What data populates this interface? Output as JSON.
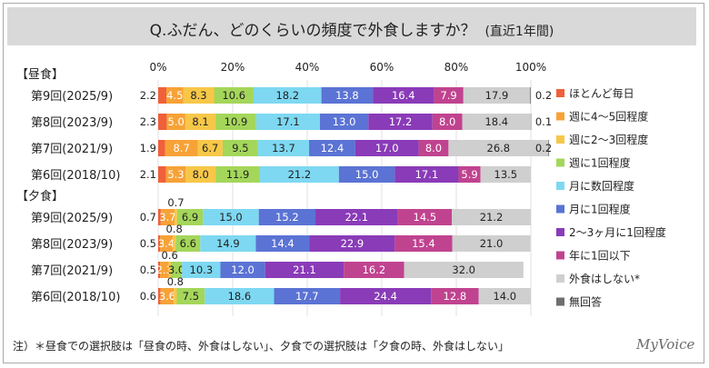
{
  "title": {
    "main": "Q.ふだん、どのくらいの頻度で外食しますか？",
    "sub": "(直近1年間)"
  },
  "note": "注）＊昼食での選択肢は「昼食の時、外食はしない」、夕食での選択肢は「夕食の時、外食はしない」",
  "logo": "MyVoice",
  "chart_data": {
    "type": "bar",
    "orientation": "horizontal",
    "stacked": "percent",
    "x_ticks": [
      "0%",
      "20%",
      "40%",
      "60%",
      "80%",
      "100%"
    ],
    "xlim": [
      0,
      100
    ],
    "legend_position": "right",
    "series_colors": [
      "#f0603a",
      "#f7a237",
      "#f7c748",
      "#a4d65a",
      "#7ed8f2",
      "#5b73d4",
      "#8a3bb8",
      "#c0438f",
      "#cfcfcf",
      "#6e6e6e"
    ],
    "series": [
      {
        "name": "ほとんど毎日"
      },
      {
        "name": "週に4～5回程度"
      },
      {
        "name": "週に2～3回程度"
      },
      {
        "name": "週に1回程度"
      },
      {
        "name": "月に数回程度"
      },
      {
        "name": "月に1回程度"
      },
      {
        "name": "2～3ヶ月に1回程度"
      },
      {
        "name": "年に1回以下"
      },
      {
        "name": "外食はしない*"
      },
      {
        "name": "無回答"
      }
    ],
    "groups": [
      {
        "label": "【昼食】",
        "rows": [
          {
            "label": "第9回(2025/9)",
            "values": [
              2.2,
              4.5,
              8.3,
              10.6,
              18.2,
              13.8,
              16.4,
              7.9,
              17.9,
              0.2
            ],
            "labels": [
              "2.2",
              "4.5",
              "8.3",
              "10.6",
              "18.2",
              "13.8",
              "16.4",
              "7.9",
              "17.9",
              "0.2"
            ]
          },
          {
            "label": "第8回(2023/9)",
            "values": [
              2.3,
              5.0,
              8.1,
              10.9,
              17.1,
              13.0,
              17.2,
              8.0,
              18.4,
              0.1
            ],
            "labels": [
              "2.3",
              "5.0",
              "8.1",
              "10.9",
              "17.1",
              "13.0",
              "17.2",
              "8.0",
              "18.4",
              "0.1"
            ]
          },
          {
            "label": "第7回(2021/9)",
            "values": [
              1.9,
              8.7,
              6.7,
              9.5,
              13.7,
              12.4,
              17.0,
              8.0,
              26.8,
              0.2
            ],
            "labels": [
              "1.9",
              "8.7",
              "6.7",
              "9.5",
              "13.7",
              "12.4",
              "17.0",
              "8.0",
              "26.8",
              "0.2"
            ]
          },
          {
            "label": "第6回(2018/10)",
            "values": [
              2.1,
              5.3,
              8.0,
              11.9,
              21.2,
              15.0,
              17.1,
              5.9,
              13.5,
              0
            ],
            "labels": [
              "2.1",
              "5.3",
              "8.0",
              "11.9",
              "21.2",
              "15.0",
              "17.1",
              "5.9",
              "13.5",
              ""
            ]
          }
        ]
      },
      {
        "label": "【夕食】",
        "rows": [
          {
            "label": "第9回(2025/9)",
            "values": [
              0.7,
              3.7,
              0.7,
              6.9,
              15.0,
              15.2,
              22.1,
              14.5,
              21.2,
              0
            ],
            "labels": [
              "0.7",
              "3.7",
              "0.7",
              "6.9",
              "15.0",
              "15.2",
              "22.1",
              "14.5",
              "21.2",
              ""
            ]
          },
          {
            "label": "第8回(2023/9)",
            "values": [
              0.5,
              3.4,
              0.8,
              6.6,
              14.9,
              14.4,
              22.9,
              15.4,
              21.0,
              0
            ],
            "labels": [
              "0.5",
              "3.4",
              "0.8",
              "6.6",
              "14.9",
              "14.4",
              "22.9",
              "15.4",
              "21.0",
              ""
            ]
          },
          {
            "label": "第7回(2021/9)",
            "values": [
              0.5,
              2.3,
              0.6,
              3.0,
              10.3,
              12.0,
              21.1,
              16.2,
              32.0,
              0
            ],
            "labels": [
              "0.5",
              "2.3",
              "0.6",
              "3.0",
              "10.3",
              "12.0",
              "21.1",
              "16.2",
              "32.0",
              ""
            ]
          },
          {
            "label": "第6回(2018/10)",
            "values": [
              0.6,
              3.6,
              0.8,
              7.5,
              18.6,
              17.7,
              24.4,
              12.8,
              14.0,
              0
            ],
            "labels": [
              "0.6",
              "3.6",
              "0.8",
              "7.5",
              "18.6",
              "17.7",
              "24.4",
              "12.8",
              "14.0",
              ""
            ]
          }
        ]
      }
    ]
  }
}
